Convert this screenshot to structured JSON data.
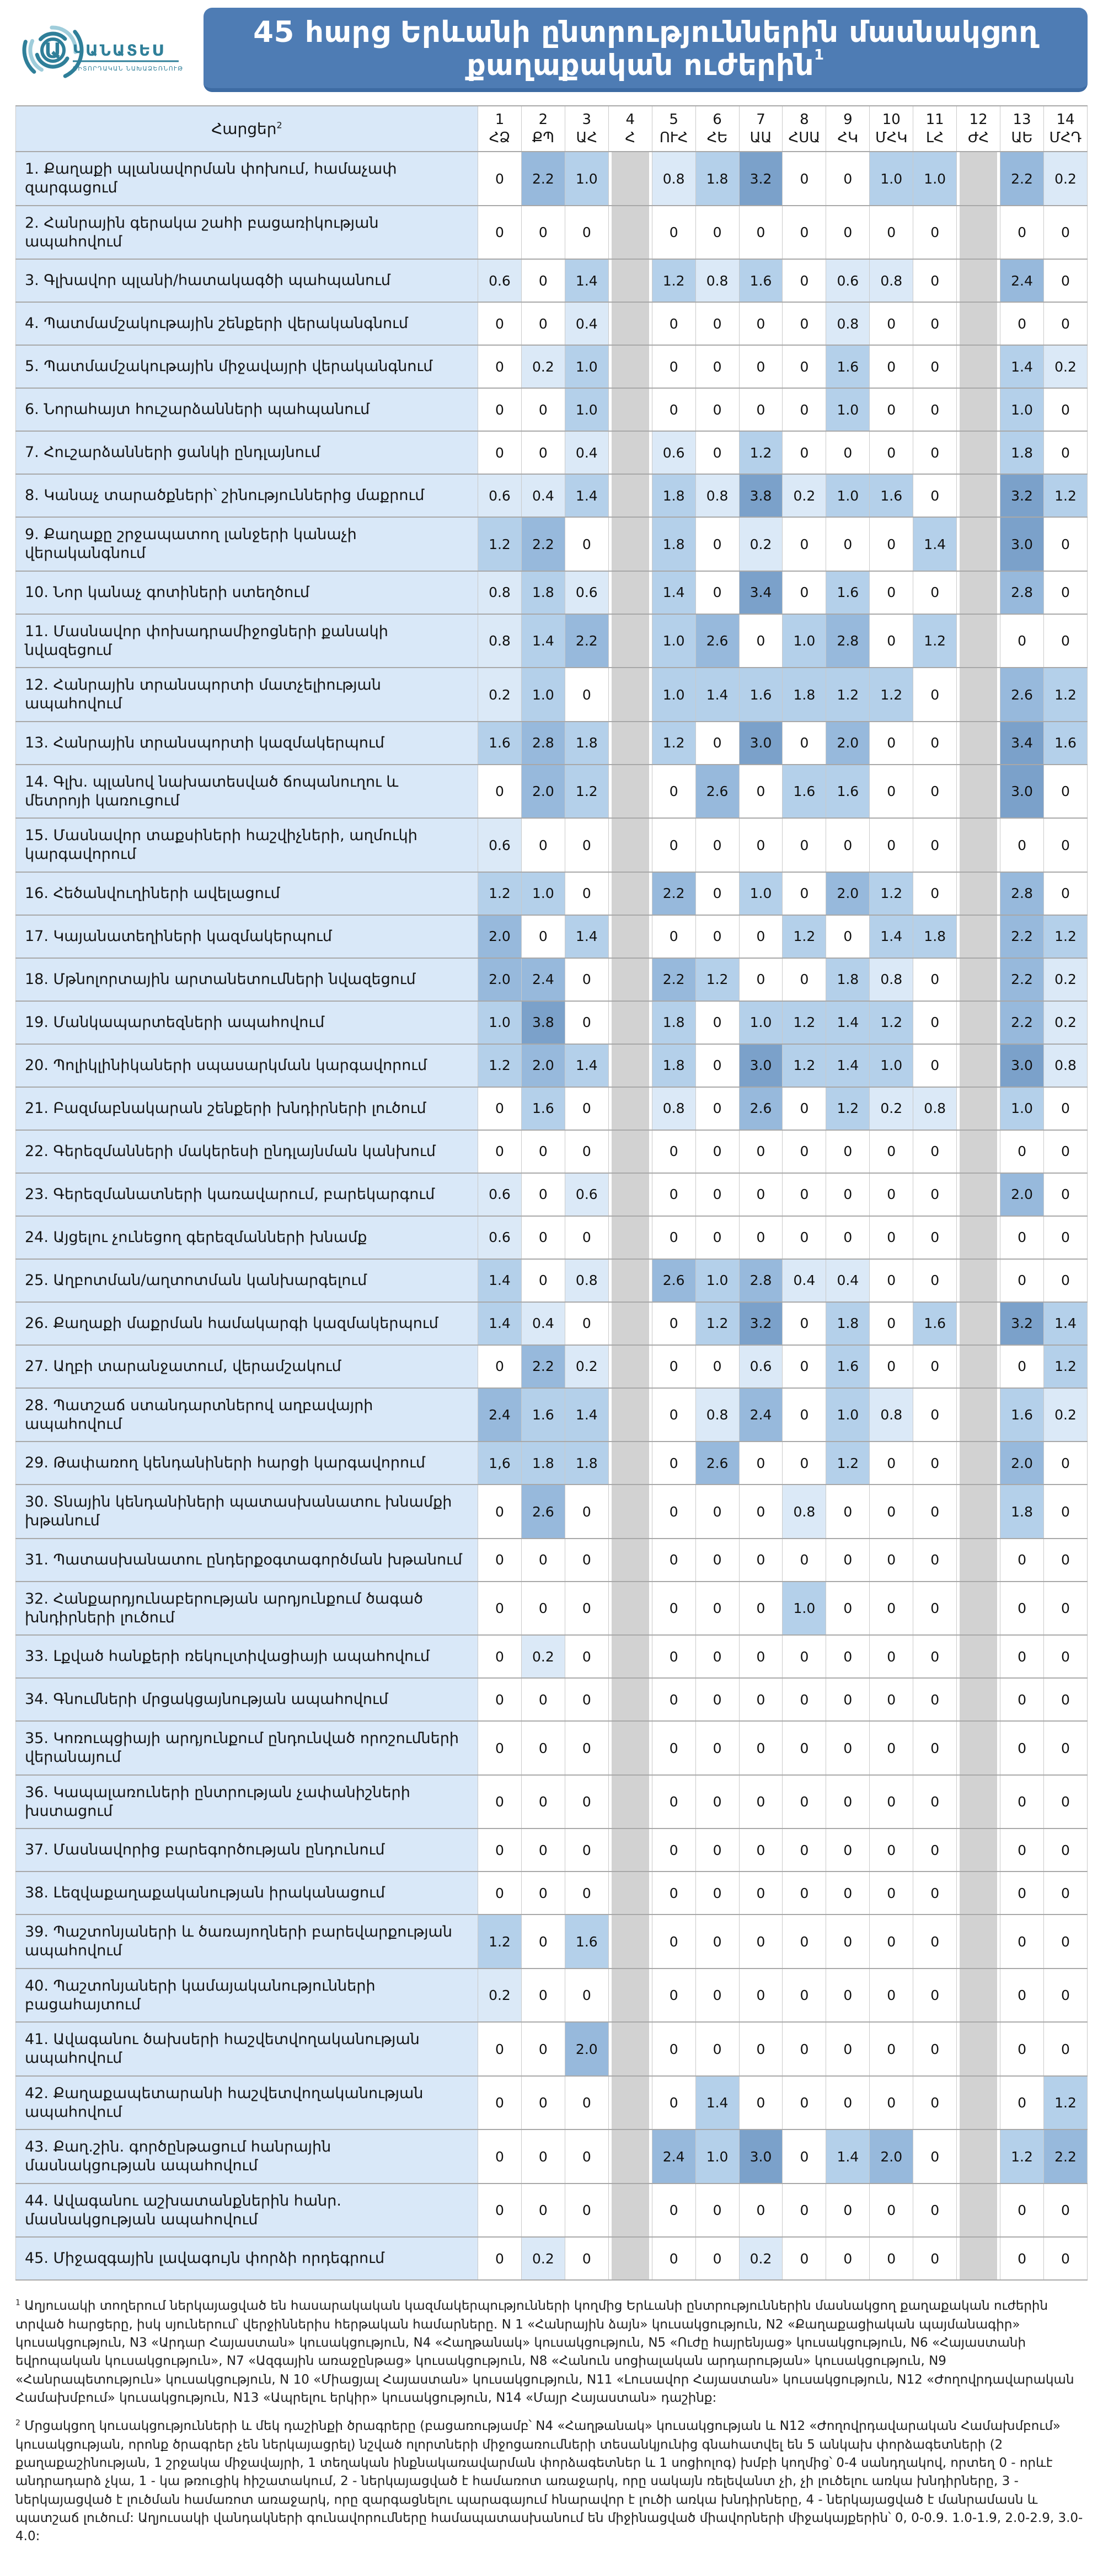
{
  "logo": {
    "letter": "Ա",
    "name": "ԿԱՆԱՏԵՍ",
    "tagline": "ԴԻՏՈՐԴԱԿԱՆ ՆԱԽԱՁԵՌՆՈՒԹՅՈՒՆ",
    "teal_dark": "#2f7f99",
    "teal_light": "#9fcddb"
  },
  "header": {
    "title": "45 հարց Երևանի ընտրություններին մասնակցող քաղաքական ուժերին",
    "title_sup": "1",
    "banner_color": "#4e7cb4"
  },
  "chart_data": {
    "type": "heatmap",
    "title": "45 հարց Երևանի ընտրություններին մասնակցող քաղաքական ուժերին",
    "questions_header": "Հարցեր",
    "questions_header_sup": "2",
    "score_scale": [
      0,
      4
    ],
    "color_scale": {
      "0": "#ffffff",
      "0-0.9": "#dbe9f7",
      "1.0-1.9": "#b4d0ea",
      "2.0-2.9": "#97b9dc",
      "3.0-4.0": "#7ba1ca",
      "no_program": "#d2d2d2"
    },
    "no_program_columns": [
      4,
      12
    ],
    "columns": [
      {
        "num": "1",
        "abbr": "ՀՁ"
      },
      {
        "num": "2",
        "abbr": "ՔՊ"
      },
      {
        "num": "3",
        "abbr": "ԱՀ"
      },
      {
        "num": "4",
        "abbr": "Հ"
      },
      {
        "num": "5",
        "abbr": "ՈՒՀ"
      },
      {
        "num": "6",
        "abbr": "ՀԵ"
      },
      {
        "num": "7",
        "abbr": "ԱԱ"
      },
      {
        "num": "8",
        "abbr": "ՀՍԱ"
      },
      {
        "num": "9",
        "abbr": "ՀԿ"
      },
      {
        "num": "10",
        "abbr": "ՄՀԿ"
      },
      {
        "num": "11",
        "abbr": "ԼՀ"
      },
      {
        "num": "12",
        "abbr": "ԺՀ"
      },
      {
        "num": "13",
        "abbr": "ԱԵ"
      },
      {
        "num": "14",
        "abbr": "ՄՀԴ"
      }
    ],
    "rows": [
      {
        "label": "1. Քաղաքի պլանավորման փոխում, համաչափ զարգացում",
        "values": [
          "0",
          "2.2",
          "1.0",
          null,
          "0.8",
          "1.8",
          "3.2",
          "0",
          "0",
          "1.0",
          "1.0",
          null,
          "2.2",
          "0.2"
        ]
      },
      {
        "label": "2. Հանրային գերակա շահի բացառիկության ապահովում",
        "values": [
          "0",
          "0",
          "0",
          null,
          "0",
          "0",
          "0",
          "0",
          "0",
          "0",
          "0",
          null,
          "0",
          "0"
        ]
      },
      {
        "label": "3. Գլխավոր պլանի/հատակագծի պահպանում",
        "values": [
          "0.6",
          "0",
          "1.4",
          null,
          "1.2",
          "0.8",
          "1.6",
          "0",
          "0.6",
          "0.8",
          "0",
          null,
          "2.4",
          "0"
        ]
      },
      {
        "label": "4. Պատմամշակութային շենքերի վերականգնում",
        "values": [
          "0",
          "0",
          "0.4",
          null,
          "0",
          "0",
          "0",
          "0",
          "0.8",
          "0",
          "0",
          null,
          "0",
          "0"
        ]
      },
      {
        "label": "5. Պատմամշակութային միջավայրի վերականգնում",
        "values": [
          "0",
          "0.2",
          "1.0",
          null,
          "0",
          "0",
          "0",
          "0",
          "1.6",
          "0",
          "0",
          null,
          "1.4",
          "0.2"
        ]
      },
      {
        "label": "6. Նորահայտ հուշարձանների պահպանում",
        "values": [
          "0",
          "0",
          "1.0",
          null,
          "0",
          "0",
          "0",
          "0",
          "1.0",
          "0",
          "0",
          null,
          "1.0",
          "0"
        ]
      },
      {
        "label": "7. Հուշարձանների ցանկի ընդլայնում",
        "values": [
          "0",
          "0",
          "0.4",
          null,
          "0.6",
          "0",
          "1.2",
          "0",
          "0",
          "0",
          "0",
          null,
          "1.8",
          "0"
        ]
      },
      {
        "label": "8. Կանաչ տարածքների՝ շինություններից մաքրում",
        "values": [
          "0.6",
          "0.4",
          "1.4",
          null,
          "1.8",
          "0.8",
          "3.8",
          "0.2",
          "1.0",
          "1.6",
          "0",
          null,
          "3.2",
          "1.2"
        ]
      },
      {
        "label": "9. Քաղաքը շրջապատող լանջերի կանաչի վերականգնում",
        "values": [
          "1.2",
          "2.2",
          "0",
          null,
          "1.8",
          "0",
          "0.2",
          "0",
          "0",
          "0",
          "1.4",
          null,
          "3.0",
          "0"
        ]
      },
      {
        "label": "10. Նոր կանաչ գոտիների ստեղծում",
        "values": [
          "0.8",
          "1.8",
          "0.6",
          null,
          "1.4",
          "0",
          "3.4",
          "0",
          "1.6",
          "0",
          "0",
          null,
          "2.8",
          "0"
        ]
      },
      {
        "label": "11. Մասնավոր փոխադրամիջոցների քանակի նվազեցում",
        "values": [
          "0.8",
          "1.4",
          "2.2",
          null,
          "1.0",
          "2.6",
          "0",
          "1.0",
          "2.8",
          "0",
          "1.2",
          null,
          "0",
          "0"
        ]
      },
      {
        "label": "12. Հանրային տրանսպորտի մատչելիության ապահովում",
        "values": [
          "0.2",
          "1.0",
          "0",
          null,
          "1.0",
          "1.4",
          "1.6",
          "1.8",
          "1.2",
          "1.2",
          "0",
          null,
          "2.6",
          "1.2"
        ]
      },
      {
        "label": "13. Հանրային տրանսպորտի կազմակերպում",
        "values": [
          "1.6",
          "2.8",
          "1.8",
          null,
          "1.2",
          "0",
          "3.0",
          "0",
          "2.0",
          "0",
          "0",
          null,
          "3.4",
          "1.6"
        ]
      },
      {
        "label": "14. Գլխ. պլանով նախատեսված ճոպանուղու և մետրոյի կառուցում",
        "values": [
          "0",
          "2.0",
          "1.2",
          null,
          "0",
          "2.6",
          "0",
          "1.6",
          "1.6",
          "0",
          "0",
          null,
          "3.0",
          "0"
        ]
      },
      {
        "label": "15. Մասնավոր տաքսիների հաշվիչների, աղմուկի կարգավորում",
        "values": [
          "0.6",
          "0",
          "0",
          null,
          "0",
          "0",
          "0",
          "0",
          "0",
          "0",
          "0",
          null,
          "0",
          "0"
        ]
      },
      {
        "label": "16. Հեծանվուղիների ավելացում",
        "values": [
          "1.2",
          "1.0",
          "0",
          null,
          "2.2",
          "0",
          "1.0",
          "0",
          "2.0",
          "1.2",
          "0",
          null,
          "2.8",
          "0"
        ]
      },
      {
        "label": "17. Կայանատեղիների կազմակերպում",
        "values": [
          "2.0",
          "0",
          "1.4",
          null,
          "0",
          "0",
          "0",
          "1.2",
          "0",
          "1.4",
          "1.8",
          null,
          "2.2",
          "1.2"
        ]
      },
      {
        "label": "18. Մթնոլորտային արտանետումների նվազեցում",
        "values": [
          "2.0",
          "2.4",
          "0",
          null,
          "2.2",
          "1.2",
          "0",
          "0",
          "1.8",
          "0.8",
          "0",
          null,
          "2.2",
          "0.2"
        ]
      },
      {
        "label": "19. Մանկապարտեզների ապահովում",
        "values": [
          "1.0",
          "3.8",
          "0",
          null,
          "1.8",
          "0",
          "1.0",
          "1.2",
          "1.4",
          "1.2",
          "0",
          null,
          "2.2",
          "0.2"
        ]
      },
      {
        "label": "20. Պոլիկլինիկաների սպասարկման կարգավորում",
        "values": [
          "1.2",
          "2.0",
          "1.4",
          null,
          "1.8",
          "0",
          "3.0",
          "1.2",
          "1.4",
          "1.0",
          "0",
          null,
          "3.0",
          "0.8"
        ]
      },
      {
        "label": "21. Բազմաբնակարան շենքերի խնդիրների լուծում",
        "values": [
          "0",
          "1.6",
          "0",
          null,
          "0.8",
          "0",
          "2.6",
          "0",
          "1.2",
          "0.2",
          "0.8",
          null,
          "1.0",
          "0"
        ]
      },
      {
        "label": "22. Գերեզմանների մակերեսի ընդլայնման կանխում",
        "values": [
          "0",
          "0",
          "0",
          null,
          "0",
          "0",
          "0",
          "0",
          "0",
          "0",
          "0",
          null,
          "0",
          "0"
        ]
      },
      {
        "label": "23. Գերեզմանատների կառավարում, բարեկարգում",
        "values": [
          "0.6",
          "0",
          "0.6",
          null,
          "0",
          "0",
          "0",
          "0",
          "0",
          "0",
          "0",
          null,
          "2.0",
          "0"
        ]
      },
      {
        "label": "24. Այցելու չունեցող գերեզմանների խնամք",
        "values": [
          "0.6",
          "0",
          "0",
          null,
          "0",
          "0",
          "0",
          "0",
          "0",
          "0",
          "0",
          null,
          "0",
          "0"
        ]
      },
      {
        "label": "25. Աղբոտման/աղտոտման կանխարգելում",
        "values": [
          "1.4",
          "0",
          "0.8",
          null,
          "2.6",
          "1.0",
          "2.8",
          "0.4",
          "0.4",
          "0",
          "0",
          null,
          "0",
          "0"
        ]
      },
      {
        "label": "26. Քաղաքի մաքրման համակարգի կազմակերպում",
        "values": [
          "1.4",
          "0.4",
          "0",
          null,
          "0",
          "1.2",
          "3.2",
          "0",
          "1.8",
          "0",
          "1.6",
          null,
          "3.2",
          "1.4"
        ]
      },
      {
        "label": "27. Աղբի տարանջատում, վերամշակում",
        "values": [
          "0",
          "2.2",
          "0.2",
          null,
          "0",
          "0",
          "0.6",
          "0",
          "1.6",
          "0",
          "0",
          null,
          "0",
          "1.2"
        ]
      },
      {
        "label": "28. Պատշաճ ստանդարտներով աղբավայրի ապահովում",
        "values": [
          "2.4",
          "1.6",
          "1.4",
          null,
          "0",
          "0.8",
          "2.4",
          "0",
          "1.0",
          "0.8",
          "0",
          null,
          "1.6",
          "0.2"
        ]
      },
      {
        "label": "29. Թափառող կենդանիների հարցի կարգավորում",
        "values": [
          "1,6",
          "1.8",
          "1.8",
          null,
          "0",
          "2.6",
          "0",
          "0",
          "1.2",
          "0",
          "0",
          null,
          "2.0",
          "0"
        ]
      },
      {
        "label": "30. Տնային կենդանիների պատասխանատու խնամքի խթանում",
        "values": [
          "0",
          "2.6",
          "0",
          null,
          "0",
          "0",
          "0",
          "0.8",
          "0",
          "0",
          "0",
          null,
          "1.8",
          "0"
        ]
      },
      {
        "label": "31. Պատասխանատու ընդերքօգտագործման խթանում",
        "values": [
          "0",
          "0",
          "0",
          null,
          "0",
          "0",
          "0",
          "0",
          "0",
          "0",
          "0",
          null,
          "0",
          "0"
        ]
      },
      {
        "label": "32. Հանքարդյունաբերության արդյունքում ծագած խնդիրների լուծում",
        "values": [
          "0",
          "0",
          "0",
          null,
          "0",
          "0",
          "0",
          "1.0",
          "0",
          "0",
          "0",
          null,
          "0",
          "0"
        ]
      },
      {
        "label": "33. Լքված հանքերի ռեկուլտիվացիայի ապահովում",
        "values": [
          "0",
          "0.2",
          "0",
          null,
          "0",
          "0",
          "0",
          "0",
          "0",
          "0",
          "0",
          null,
          "0",
          "0"
        ]
      },
      {
        "label": "34. Գնումների մրցակցայնության ապահովում",
        "values": [
          "0",
          "0",
          "0",
          null,
          "0",
          "0",
          "0",
          "0",
          "0",
          "0",
          "0",
          null,
          "0",
          "0"
        ]
      },
      {
        "label": "35. Կոռուպցիայի արդյունքում ընդունված որոշումների վերանայում",
        "values": [
          "0",
          "0",
          "0",
          null,
          "0",
          "0",
          "0",
          "0",
          "0",
          "0",
          "0",
          null,
          "0",
          "0"
        ]
      },
      {
        "label": "36. Կապալառուների ընտրության չափանիշների խստացում",
        "values": [
          "0",
          "0",
          "0",
          null,
          "0",
          "0",
          "0",
          "0",
          "0",
          "0",
          "0",
          null,
          "0",
          "0"
        ]
      },
      {
        "label": "37. Մասնավորից բարեգործության ընդունում",
        "values": [
          "0",
          "0",
          "0",
          null,
          "0",
          "0",
          "0",
          "0",
          "0",
          "0",
          "0",
          null,
          "0",
          "0"
        ]
      },
      {
        "label": "38. Լեզվաքաղաքականության իրականացում",
        "values": [
          "0",
          "0",
          "0",
          null,
          "0",
          "0",
          "0",
          "0",
          "0",
          "0",
          "0",
          null,
          "0",
          "0"
        ]
      },
      {
        "label": "39. Պաշտոնյաների և ծառայողների բարեվարքության ապահովում",
        "values": [
          "1.2",
          "0",
          "1.6",
          null,
          "0",
          "0",
          "0",
          "0",
          "0",
          "0",
          "0",
          null,
          "0",
          "0"
        ]
      },
      {
        "label": "40. Պաշտոնյաների կամայականությունների բացահայտում",
        "values": [
          "0.2",
          "0",
          "0",
          null,
          "0",
          "0",
          "0",
          "0",
          "0",
          "0",
          "0",
          null,
          "0",
          "0"
        ]
      },
      {
        "label": "41. Ավագանու ծախսերի հաշվետվողականության ապահովում",
        "values": [
          "0",
          "0",
          "2.0",
          null,
          "0",
          "0",
          "0",
          "0",
          "0",
          "0",
          "0",
          null,
          "0",
          "0"
        ]
      },
      {
        "label": "42. Քաղաքապետարանի հաշվետվողականության ապահովում",
        "values": [
          "0",
          "0",
          "0",
          null,
          "0",
          "1.4",
          "0",
          "0",
          "0",
          "0",
          "0",
          null,
          "0",
          "1.2"
        ]
      },
      {
        "label": "43. Քաղ.շին. գործընթացում հանրային մասնակցության ապահովում",
        "values": [
          "0",
          "0",
          "0",
          null,
          "2.4",
          "1.0",
          "3.0",
          "0",
          "1.4",
          "2.0",
          "0",
          null,
          "1.2",
          "2.2"
        ]
      },
      {
        "label": "44. Ավագանու աշխատանքներին հանր. մասնակցության ապահովում",
        "values": [
          "0",
          "0",
          "0",
          null,
          "0",
          "0",
          "0",
          "0",
          "0",
          "0",
          "0",
          null,
          "0",
          "0"
        ]
      },
      {
        "label": "45. Միջազգային լավագույն փորձի որդեգրում",
        "values": [
          "0",
          "0.2",
          "0",
          null,
          "0",
          "0",
          "0.2",
          "0",
          "0",
          "0",
          "0",
          null,
          "0",
          "0"
        ]
      }
    ]
  },
  "footnotes": [
    {
      "num": "1",
      "text": "Աղյուսակի տողերում ներկայացված են հասարակական կազմակերպությունների կողմից Երևանի ընտրություններին մասնակցող քաղաքական ուժերին տրված հարցերը, իսկ սյուներում՝ վերջիններիս հերթական համարները. N 1 «Հանրային ձայն» կուսակցություն, N2 «Քաղաքացիական պայմանագիր» կուսակցություն, N3 «Արդար Հայաստան» կուսակցություն, N4 «Հաղթանակ» կուսակցություն, N5 «Ուժը հայրենյաց» կուսակցություն, N6 «Հայաստանի եվրոպական կուսակցություն», N7 «Ազգային առաջընթաց» կուսակցություն, N8 «Հանուն սոցիալական արդարության» կուսակցություն, N9 «Հանրապետություն» կուսակցություն, N 10 «Միացյալ Հայաստան» կուսակցություն, N11 «Լուսավոր Հայաստան» կուսակցություն, N12 «Ժողովրդավարական Համախմբում» կուսակցություն, N13 «Ապրելու երկիր» կուսակցություն, N14 «Մայր Հայաստան» դաշինք:"
    },
    {
      "num": "2",
      "text": "Մրցակցող կուսակցությունների և մեկ դաշինքի ծրագրերը (բացառությամբ՝ N4 «Հաղթանակ» կուսակցության և N12 «Ժողովրդավարական Համախմբում» կուսակցության, որոնք ծրագրեր չեն ներկայացրել) նշված ոլորտների միջոցառումների տեսանկյունից գնահատվել են 5 անկախ փորձագետների (2 քաղաքաշինության, 1 շրջակա միջավայրի, 1 տեղական ինքնակառավարման փորձագետներ և 1 սոցիոլոգ) խմբի կողմից՝ 0-4 սանդղակով, որտեղ 0 - որևէ անդրադարձ չկա, 1 - կա թռուցիկ հիշատակում, 2 - ներկայացված է համառոտ առաջարկ, որը սակայն ռելեվանտ չի, չի լուծելու առկա խնդիրները, 3 - ներկայացված է լուծման համառոտ առաջարկ, որը զարգացնելու պարագայում հնարավոր է լուծի առկա խնդիրները, 4 - ներկայացված է մանրամասն և պատշաճ լուծում: Աղյուսակի վանդակների գունավորումները համապատասխանում են միջինացված միավորների միջակայքերին՝ 0, 0-0.9. 1.0-1.9, 2.0-2.9, 3.0-4.0:"
    }
  ]
}
